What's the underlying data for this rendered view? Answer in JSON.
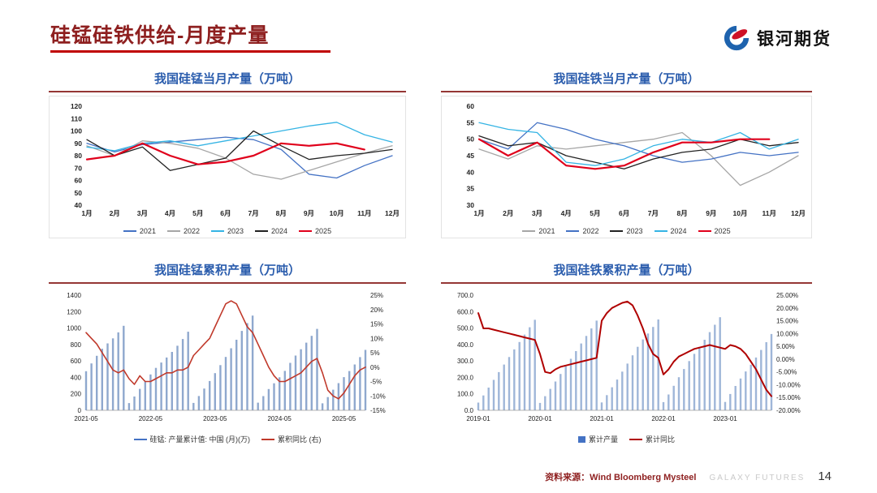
{
  "header": {
    "title": "硅锰硅铁供给-月度产量",
    "logo_text": "银河期货",
    "accent_color": "#C00000"
  },
  "footer": {
    "source_label": "资料来源：Wind Bloomberg Mysteel",
    "brand": "GALAXY FUTURES",
    "page_number": "14"
  },
  "chart_data": [
    {
      "id": "simn-monthly",
      "type": "line",
      "title": "我国硅锰当月产量（万吨）",
      "x": [
        "1月",
        "2月",
        "3月",
        "4月",
        "5月",
        "6月",
        "7月",
        "8月",
        "9月",
        "10月",
        "11月",
        "12月"
      ],
      "ylim": [
        40,
        120
      ],
      "yticks": [
        120,
        110,
        100,
        90,
        80,
        70,
        60,
        50,
        40
      ],
      "legend_position": "bottom",
      "grid": false,
      "series": [
        {
          "name": "2021",
          "color": "#4472C4",
          "width": 1.3,
          "values": [
            90,
            83,
            89,
            91,
            93,
            95,
            93,
            85,
            65,
            62,
            72,
            80
          ]
        },
        {
          "name": "2022",
          "color": "#A6A6A6",
          "width": 1.3,
          "values": [
            88,
            80,
            92,
            90,
            86,
            78,
            65,
            61,
            68,
            75,
            82,
            88
          ]
        },
        {
          "name": "2023",
          "color": "#35B4E4",
          "width": 1.3,
          "values": [
            87,
            84,
            90,
            92,
            88,
            92,
            96,
            100,
            104,
            107,
            97,
            91
          ]
        },
        {
          "name": "2024",
          "color": "#222222",
          "width": 1.3,
          "values": [
            93,
            80,
            87,
            68,
            73,
            78,
            100,
            88,
            77,
            80,
            82,
            85
          ]
        },
        {
          "name": "2025",
          "color": "#E0001B",
          "width": 2.2,
          "values": [
            77,
            80,
            90,
            80,
            73,
            75,
            80,
            90,
            88,
            90,
            85,
            null
          ]
        }
      ]
    },
    {
      "id": "sife-monthly",
      "type": "line",
      "title": "我国硅铁当月产量（万吨）",
      "x": [
        "1月",
        "2月",
        "3月",
        "4月",
        "5月",
        "6月",
        "7月",
        "8月",
        "9月",
        "10月",
        "11月",
        "12月"
      ],
      "ylim": [
        30,
        60
      ],
      "yticks": [
        60,
        55,
        50,
        45,
        40,
        35,
        30
      ],
      "legend_position": "bottom",
      "grid": false,
      "series": [
        {
          "name": "2021",
          "color": "#A6A6A6",
          "width": 1.3,
          "values": [
            47,
            44,
            48,
            47,
            48,
            49,
            50,
            52,
            45,
            36,
            40,
            45
          ]
        },
        {
          "name": "2022",
          "color": "#4472C4",
          "width": 1.3,
          "values": [
            50,
            47,
            55,
            53,
            50,
            48,
            45,
            43,
            44,
            46,
            45,
            46
          ]
        },
        {
          "name": "2023",
          "color": "#222222",
          "width": 1.3,
          "values": [
            51,
            48,
            49,
            45,
            43,
            41,
            44,
            46,
            47,
            50,
            48,
            49
          ]
        },
        {
          "name": "2024",
          "color": "#35B4E4",
          "width": 1.3,
          "values": [
            55,
            53,
            52,
            43,
            42,
            44,
            48,
            50,
            49,
            52,
            47,
            50
          ]
        },
        {
          "name": "2025",
          "color": "#E0001B",
          "width": 2.2,
          "values": [
            50,
            45,
            49,
            42,
            41,
            42,
            46,
            49,
            49,
            50,
            50,
            null
          ]
        }
      ]
    },
    {
      "id": "simn-cumulative",
      "type": "combo",
      "title": "我国硅锰累积产量（万吨）",
      "x": [
        "2021-05",
        "2021-06",
        "2021-07",
        "2021-08",
        "2021-09",
        "2021-10",
        "2021-11",
        "2021-12",
        "2022-01",
        "2022-02",
        "2022-03",
        "2022-04",
        "2022-05",
        "2022-06",
        "2022-07",
        "2022-08",
        "2022-09",
        "2022-10",
        "2022-11",
        "2022-12",
        "2023-01",
        "2023-02",
        "2023-03",
        "2023-04",
        "2023-05",
        "2023-06",
        "2023-07",
        "2023-08",
        "2023-09",
        "2023-10",
        "2023-11",
        "2023-12",
        "2024-01",
        "2024-02",
        "2024-03",
        "2024-04",
        "2024-05",
        "2024-06",
        "2024-07",
        "2024-08",
        "2024-09",
        "2024-10",
        "2024-11",
        "2024-12",
        "2025-01",
        "2025-02",
        "2025-03",
        "2025-04",
        "2025-05",
        "2025-06",
        "2025-07",
        "2025-08",
        "2025-09"
      ],
      "xtick_idx": [
        0,
        12,
        24,
        36,
        48
      ],
      "ylim_left": [
        0,
        1400
      ],
      "yticks_left": [
        {
          "v": 1400,
          "label": "1400"
        },
        {
          "v": 1200,
          "label": "1200"
        },
        {
          "v": 1000,
          "label": "1000"
        },
        {
          "v": 800,
          "label": "800"
        },
        {
          "v": 600,
          "label": "600"
        },
        {
          "v": 400,
          "label": "400"
        },
        {
          "v": 200,
          "label": "200"
        },
        {
          "v": 0,
          "label": "0"
        }
      ],
      "ylim_right": [
        -15,
        25
      ],
      "yticks_right": [
        {
          "v": 25,
          "label": "25%"
        },
        {
          "v": 20,
          "label": "20%"
        },
        {
          "v": 15,
          "label": "15%"
        },
        {
          "v": 10,
          "label": "10%"
        },
        {
          "v": 5,
          "label": "5%"
        },
        {
          "v": 0,
          "label": "0%"
        },
        {
          "v": -5,
          "label": "-5%"
        },
        {
          "v": -10,
          "label": "-10%"
        },
        {
          "v": -15,
          "label": "-15%"
        }
      ],
      "bar_color": "#8FA8CE",
      "line_color": "#C0392B",
      "line_width": 1.6,
      "bars": [
        475,
        570,
        663,
        748,
        813,
        875,
        947,
        1027,
        88,
        168,
        260,
        350,
        436,
        516,
        581,
        642,
        710,
        785,
        867,
        955,
        90,
        174,
        264,
        356,
        452,
        549,
        649,
        754,
        858,
        965,
        1060,
        1152,
        93,
        173,
        258,
        328,
        401,
        479,
        577,
        665,
        742,
        822,
        905,
        990,
        85,
        161,
        250,
        330,
        403,
        477,
        557,
        647,
        735
      ],
      "line": [
        12,
        10,
        8,
        5,
        2,
        -1,
        -2,
        -1,
        -4,
        -6,
        -3,
        -5,
        -5,
        -4,
        -3,
        -2,
        -2,
        -1,
        -1,
        0,
        4,
        6,
        8,
        10,
        14,
        18,
        22,
        23,
        22,
        18,
        14,
        12,
        8,
        4,
        0,
        -3,
        -5,
        -5,
        -4,
        -3,
        -2,
        0,
        2,
        3,
        -2,
        -8,
        -10,
        -11,
        -9,
        -6,
        -3,
        -1,
        0
      ],
      "legend": [
        {
          "swatch": "line",
          "color": "#4472C4",
          "label": "硅锰: 产量累计值: 中国 (月)(万)"
        },
        {
          "swatch": "line",
          "color": "#C0392B",
          "label": "累积同比 (右)"
        }
      ]
    },
    {
      "id": "sife-cumulative",
      "type": "combo",
      "title": "我国硅铁累积产量（万吨）",
      "x": [
        "2019-01",
        "2019-02",
        "2019-03",
        "2019-04",
        "2019-05",
        "2019-06",
        "2019-07",
        "2019-08",
        "2019-09",
        "2019-10",
        "2019-11",
        "2019-12",
        "2020-01",
        "2020-02",
        "2020-03",
        "2020-04",
        "2020-05",
        "2020-06",
        "2020-07",
        "2020-08",
        "2020-09",
        "2020-10",
        "2020-11",
        "2020-12",
        "2021-01",
        "2021-02",
        "2021-03",
        "2021-04",
        "2021-05",
        "2021-06",
        "2021-07",
        "2021-08",
        "2021-09",
        "2021-10",
        "2021-11",
        "2021-12",
        "2022-01",
        "2022-02",
        "2022-03",
        "2022-04",
        "2022-05",
        "2022-06",
        "2022-07",
        "2022-08",
        "2022-09",
        "2022-10",
        "2022-11",
        "2022-12",
        "2023-01",
        "2023-02",
        "2023-03",
        "2023-04",
        "2023-05",
        "2023-06",
        "2023-07",
        "2023-08",
        "2023-09",
        "2023-10"
      ],
      "xtick_idx": [
        0,
        12,
        24,
        36,
        48
      ],
      "ylim_left": [
        0,
        700
      ],
      "yticks_left": [
        {
          "v": 700,
          "label": "700.0"
        },
        {
          "v": 600,
          "label": "600.0"
        },
        {
          "v": 500,
          "label": "500.0"
        },
        {
          "v": 400,
          "label": "400.0"
        },
        {
          "v": 300,
          "label": "300.0"
        },
        {
          "v": 200,
          "label": "200.0"
        },
        {
          "v": 100,
          "label": "100.0"
        },
        {
          "v": 0,
          "label": "0.0"
        }
      ],
      "ylim_right": [
        -20,
        25
      ],
      "yticks_right": [
        {
          "v": 25,
          "label": "25.00%"
        },
        {
          "v": 20,
          "label": "20.00%"
        },
        {
          "v": 15,
          "label": "15.00%"
        },
        {
          "v": 10,
          "label": "10.00%"
        },
        {
          "v": 5,
          "label": "5.00%"
        },
        {
          "v": 0,
          "label": "0.00%"
        },
        {
          "v": -5,
          "label": "-5.00%"
        },
        {
          "v": -10,
          "label": "-10.00%"
        },
        {
          "v": -15,
          "label": "-15.00%"
        },
        {
          "v": -20,
          "label": "-20.00%"
        }
      ],
      "bar_color": "#9FB6D8",
      "line_color": "#B00000",
      "line_width": 2,
      "bars": [
        47,
        90,
        138,
        185,
        232,
        278,
        324,
        370,
        415,
        460,
        505,
        550,
        45,
        86,
        130,
        175,
        221,
        267,
        313,
        360,
        406,
        452,
        498,
        545,
        48,
        92,
        140,
        187,
        235,
        284,
        334,
        386,
        431,
        467,
        507,
        552,
        50,
        96,
        149,
        201,
        251,
        299,
        343,
        385,
        429,
        475,
        520,
        566,
        51,
        99,
        148,
        193,
        236,
        277,
        321,
        367,
        414,
        464
      ],
      "line": [
        18,
        12,
        12,
        11.5,
        11,
        10.5,
        10,
        9.5,
        9,
        8.5,
        8,
        7.5,
        2,
        -5,
        -5.5,
        -4,
        -3,
        -2.5,
        -2,
        -1.5,
        -1,
        -0.5,
        0,
        0.5,
        15,
        18,
        20,
        21,
        22,
        22.5,
        21,
        17,
        12,
        6,
        2,
        0.5,
        -6,
        -4,
        -1,
        1,
        2,
        3,
        4,
        4.5,
        5,
        5.5,
        5,
        4.5,
        4,
        5.5,
        5,
        4,
        2,
        -1,
        -4,
        -8,
        -12,
        -14.5
      ],
      "legend": [
        {
          "swatch": "bar",
          "color": "#4472C4",
          "label": "累计产量"
        },
        {
          "swatch": "line",
          "color": "#B00000",
          "label": "累计同比"
        }
      ]
    }
  ]
}
